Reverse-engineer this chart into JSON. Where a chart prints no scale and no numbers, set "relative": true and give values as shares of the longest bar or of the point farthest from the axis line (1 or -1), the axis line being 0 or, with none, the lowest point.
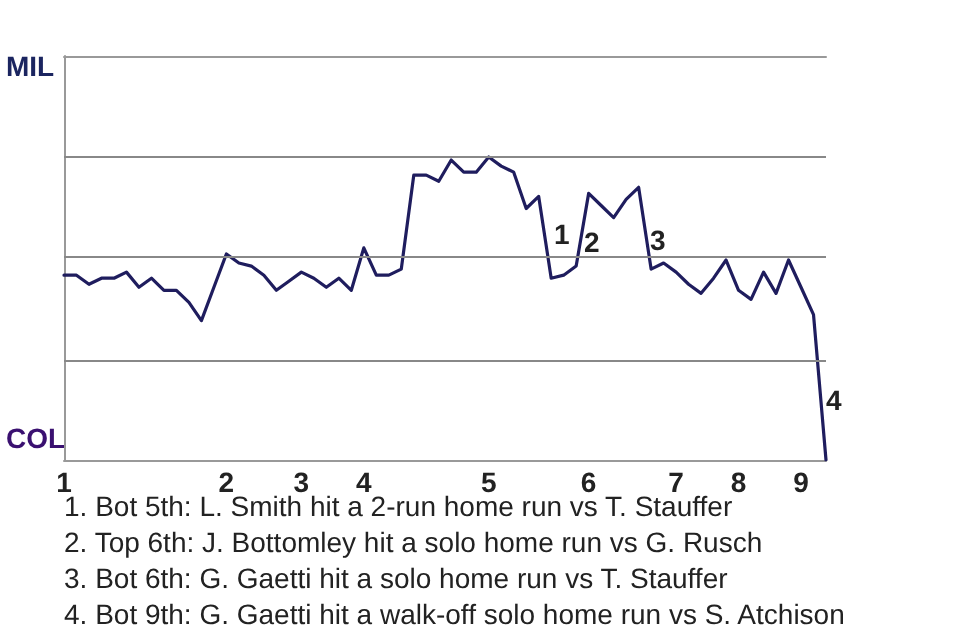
{
  "chart_data": {
    "type": "line",
    "relative": true,
    "categories": [
      "1",
      null,
      null,
      null,
      null,
      null,
      null,
      null,
      null,
      null,
      null,
      null,
      null,
      "2",
      null,
      null,
      null,
      null,
      null,
      "3",
      null,
      null,
      null,
      null,
      "4",
      null,
      null,
      null,
      null,
      null,
      null,
      null,
      null,
      null,
      "5",
      null,
      null,
      null,
      null,
      null,
      null,
      null,
      "6",
      null,
      null,
      null,
      null,
      null,
      null,
      "7",
      null,
      null,
      null,
      null,
      "8",
      null,
      null,
      null,
      null,
      "9",
      null,
      null
    ],
    "values": [
      0.61,
      0.61,
      0.58,
      0.6,
      0.6,
      0.62,
      0.57,
      0.6,
      0.56,
      0.56,
      0.52,
      0.46,
      0.57,
      0.68,
      0.65,
      0.64,
      0.61,
      0.56,
      0.59,
      0.62,
      0.6,
      0.57,
      0.6,
      0.56,
      0.7,
      0.61,
      0.61,
      0.63,
      0.94,
      0.94,
      0.92,
      0.99,
      0.95,
      0.95,
      1,
      0.97,
      0.95,
      0.83,
      0.87,
      0.6,
      0.61,
      0.64,
      0.88,
      0.84,
      0.8,
      0.86,
      0.9,
      0.63,
      0.65,
      0.62,
      0.58,
      0.55,
      0.6,
      0.66,
      0.56,
      0.53,
      0.62,
      0.55,
      0.66,
      0.57,
      0.48,
      0
    ],
    "color": "#1f1d5e",
    "ref_lines": [
      {
        "axis": "y",
        "value": 0.33,
        "color": "#888888"
      },
      {
        "axis": "y",
        "value": 0.67,
        "color": "#888888"
      },
      {
        "axis": "y",
        "value": 1,
        "color": "#888888"
      }
    ],
    "marker": "none",
    "line_style": "solid",
    "annotations": [
      "MIL",
      "COL",
      "1",
      "2",
      "3",
      "4",
      "1. Bot 5th: L. Smith hit a 2-run home run vs T. Stauffer",
      "2. Top 6th: J. Bottomley hit a solo home run vs G. Rusch",
      "3. Bot 6th: G. Gaetti hit a solo home run vs T. Stauffer",
      "4. Bot 9th: G. Gaetti hit a walk-off solo home run vs S. Atchison"
    ]
  }
}
